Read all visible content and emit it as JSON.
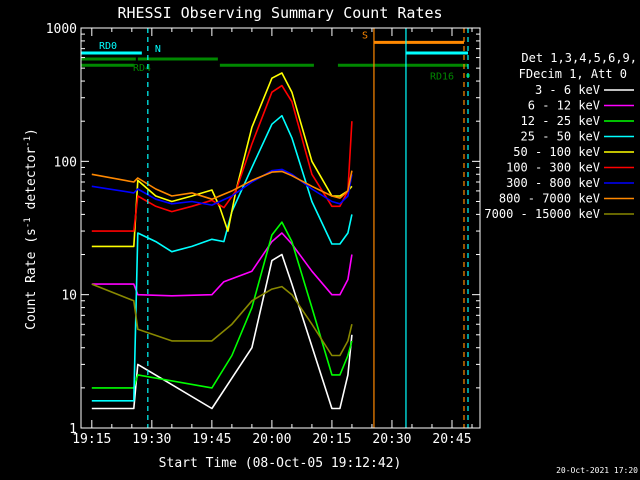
{
  "chart_data": {
    "type": "line",
    "title": "RHESSI Observing Summary Count Rates",
    "xlabel": "Start Time (08-Oct-05 19:12:42)",
    "ylabel_main": "Count Rate (s",
    "ylabel_sup1": "-1",
    "ylabel_mid": " detector",
    "ylabel_sup2": "-1",
    "ylabel_end": ")",
    "yscale": "log",
    "xlim_minutes": [
      -2.7,
      97
    ],
    "ylim": [
      1,
      1000
    ],
    "xticks": [
      {
        "minute": 0,
        "label": "19:15"
      },
      {
        "minute": 15,
        "label": "19:30"
      },
      {
        "minute": 30,
        "label": "19:45"
      },
      {
        "minute": 45,
        "label": "20:00"
      },
      {
        "minute": 60,
        "label": "20:15"
      },
      {
        "minute": 75,
        "label": "20:30"
      },
      {
        "minute": 90,
        "label": "20:45"
      }
    ],
    "yticks": [
      {
        "value": 1,
        "label": "1"
      },
      {
        "value": 10,
        "label": "10"
      },
      {
        "value": 100,
        "label": "100"
      },
      {
        "value": 1000,
        "label": "1000"
      }
    ],
    "legend_header": [
      "Det 1,3,4,5,6,9,",
      "FDecim 1, Att 0"
    ],
    "series": [
      {
        "name": "3 - 6 keV",
        "color": "#ffffff",
        "x": [
          0,
          10.5,
          11.5,
          30,
          40,
          45,
          47.5,
          50,
          60,
          62,
          64,
          65
        ],
        "y": [
          1.4,
          1.4,
          3.0,
          1.4,
          4.0,
          18,
          20,
          12,
          1.4,
          1.4,
          2.5,
          5
        ]
      },
      {
        "name": "6 - 12 keV",
        "color": "#ff00ff",
        "x": [
          0,
          10.5,
          11.5,
          20,
          30,
          33,
          40,
          45,
          47.5,
          50,
          55,
          60,
          62,
          64,
          65
        ],
        "y": [
          12,
          12,
          10,
          9.8,
          10,
          12.5,
          15,
          25,
          29,
          24,
          15,
          10,
          10,
          13,
          20
        ]
      },
      {
        "name": "12 - 25 keV",
        "color": "#00ff00",
        "x": [
          0,
          10.5,
          11.5,
          30,
          35,
          40,
          45,
          47.5,
          50,
          55,
          60,
          62,
          64,
          65
        ],
        "y": [
          2.0,
          2.0,
          2.5,
          2.0,
          3.5,
          8,
          28,
          35,
          25,
          8,
          2.5,
          2.5,
          3.5,
          4.5
        ]
      },
      {
        "name": "25 - 50 keV",
        "color": "#00ffff",
        "x": [
          0,
          10.5,
          11.5,
          16,
          20,
          25,
          30,
          33,
          35,
          40,
          45,
          47.5,
          50,
          55,
          60,
          62,
          64,
          65
        ],
        "y": [
          1.6,
          1.6,
          29,
          25,
          21,
          23,
          26,
          25,
          42,
          90,
          190,
          220,
          150,
          50,
          24,
          24,
          29,
          40
        ]
      },
      {
        "name": "50 - 100 keV",
        "color": "#ffff00",
        "x": [
          0,
          10.5,
          11.5,
          16,
          20,
          25,
          30,
          32,
          34,
          36,
          40,
          45,
          47.5,
          50,
          55,
          60,
          62,
          64,
          65
        ],
        "y": [
          23,
          23,
          72,
          55,
          50,
          55,
          61,
          45,
          30,
          60,
          180,
          420,
          460,
          330,
          100,
          55,
          55,
          60,
          65
        ]
      },
      {
        "name": "100 - 300 keV",
        "color": "#ff0000",
        "x": [
          0,
          10.5,
          11.5,
          16,
          20,
          25,
          30,
          33,
          36,
          40,
          45,
          47.5,
          50,
          55,
          60,
          62,
          64,
          65
        ],
        "y": [
          30,
          30,
          55,
          46,
          42,
          46,
          51,
          45,
          60,
          135,
          330,
          370,
          280,
          80,
          46,
          46,
          60,
          200
        ]
      },
      {
        "name": "300 - 800 keV",
        "color": "#0000ff",
        "x": [
          0,
          10.5,
          11.5,
          16,
          20,
          25,
          30,
          35,
          40,
          45,
          47.5,
          50,
          55,
          60,
          62,
          64,
          65
        ],
        "y": [
          65,
          58,
          62,
          52,
          48,
          50,
          47,
          55,
          70,
          85,
          87,
          80,
          62,
          50,
          48,
          55,
          80
        ]
      },
      {
        "name": "800 - 7000 keV",
        "color": "#ff8800",
        "x": [
          0,
          10.5,
          11.5,
          16,
          20,
          25,
          30,
          35,
          40,
          45,
          47.5,
          50,
          55,
          60,
          62,
          64,
          65
        ],
        "y": [
          80,
          70,
          75,
          62,
          55,
          58,
          52,
          60,
          72,
          83,
          84,
          78,
          65,
          55,
          53,
          60,
          85
        ]
      },
      {
        "name": "7000 - 15000 keV",
        "color": "#888800",
        "x": [
          0,
          10.5,
          11.5,
          20,
          30,
          35,
          40,
          45,
          47.5,
          50,
          55,
          60,
          62,
          64,
          65
        ],
        "y": [
          12,
          9,
          5.5,
          4.5,
          4.5,
          6,
          9,
          11,
          11.5,
          10,
          6,
          3.5,
          3.5,
          4.5,
          6
        ]
      }
    ],
    "flags": [
      {
        "label": "RD0",
        "color": "#00ffff",
        "y": 650,
        "segments": [
          [
            -2.7,
            12.5
          ],
          [
            78.5,
            94
          ]
        ]
      },
      {
        "label": "RD4",
        "color": "#008800",
        "y": 585,
        "segments": [
          [
            -2.7,
            11
          ],
          [
            11.5,
            31.5
          ]
        ]
      },
      {
        "label": "",
        "color": "#008800",
        "y": 525,
        "segments": [
          [
            -2.7,
            10.5
          ],
          [
            32,
            55.5
          ],
          [
            61.5,
            94
          ]
        ]
      },
      {
        "label": "S",
        "color": "#ff8800",
        "y": 780,
        "segments": [
          [
            70.5,
            93
          ]
        ]
      },
      {
        "label": "RD16",
        "color": "#008800",
        "y": 440,
        "segments": [
          [
            93.5,
            94.5
          ]
        ]
      }
    ],
    "markers": [
      {
        "label": "N",
        "color": "#00ffff",
        "x": 14,
        "dashed": true
      },
      {
        "label": "",
        "color": "#ff8800",
        "x": 70.5,
        "dashed": false
      },
      {
        "label": "",
        "color": "#00ffff",
        "x": 78.5,
        "dashed": false
      },
      {
        "label": "",
        "color": "#ff8800",
        "x": 93,
        "dashed": true
      },
      {
        "label": "",
        "color": "#00ffff",
        "x": 94,
        "dashed": true
      }
    ]
  },
  "footer": {
    "timestamp": "20-Oct-2021 17:20"
  }
}
